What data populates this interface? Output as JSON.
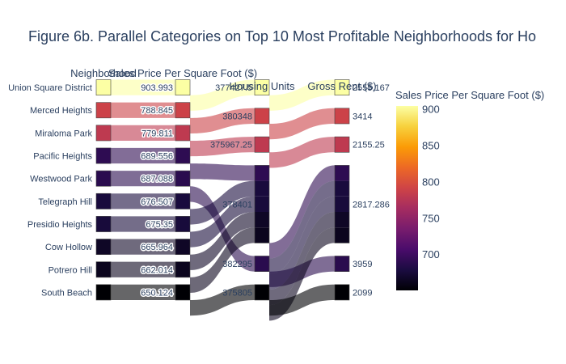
{
  "chart_data": {
    "type": "parallel_categories",
    "title": "Figure 6b. Parallel Categories on Top 10 Most Profitable Neighborhoods for Ho",
    "dimensions": [
      {
        "label": "Neighborhood",
        "categories": [
          "Union Square District",
          "Merced Heights",
          "Miraloma Park",
          "Pacific Heights",
          "Westwood Park",
          "Telegraph Hill",
          "Presidio Heights",
          "Cow Hollow",
          "Potrero Hill",
          "South Beach"
        ]
      },
      {
        "label": "Sales Price Per Square Foot ($)",
        "categories": [
          "903.993",
          "788.845",
          "779.811",
          "689.556",
          "687.088",
          "676.507",
          "675.35",
          "665.964",
          "662.014",
          "650.124"
        ]
      },
      {
        "label": "Housing Units",
        "categories": [
          "377427.5",
          "380348",
          "375967.25",
          "378401",
          "382295",
          "375805"
        ]
      },
      {
        "label": "Gross Rent ($)",
        "categories": [
          "2555.167",
          "3414",
          "2155.25",
          "2817.286",
          "3959",
          "2099"
        ]
      }
    ],
    "records": [
      {
        "neighborhood": "Union Square District",
        "sale_price_sqr_foot": 903.993,
        "housing_units": 377427.5,
        "gross_rent": 2555.167
      },
      {
        "neighborhood": "Merced Heights",
        "sale_price_sqr_foot": 788.845,
        "housing_units": 380348,
        "gross_rent": 3414
      },
      {
        "neighborhood": "Miraloma Park",
        "sale_price_sqr_foot": 779.811,
        "housing_units": 375967.25,
        "gross_rent": 2155.25
      },
      {
        "neighborhood": "Pacific Heights",
        "sale_price_sqr_foot": 689.556,
        "housing_units": 378401,
        "gross_rent": 2817.286
      },
      {
        "neighborhood": "Westwood Park",
        "sale_price_sqr_foot": 687.088,
        "housing_units": 382295,
        "gross_rent": 3959
      },
      {
        "neighborhood": "Telegraph Hill",
        "sale_price_sqr_foot": 676.507,
        "housing_units": 378401,
        "gross_rent": 2817.286
      },
      {
        "neighborhood": "Presidio Heights",
        "sale_price_sqr_foot": 675.35,
        "housing_units": 378401,
        "gross_rent": 2817.286
      },
      {
        "neighborhood": "Cow Hollow",
        "sale_price_sqr_foot": 665.964,
        "housing_units": 378401,
        "gross_rent": 2817.286
      },
      {
        "neighborhood": "Potrero Hill",
        "sale_price_sqr_foot": 662.014,
        "housing_units": 378401,
        "gross_rent": 2817.286
      },
      {
        "neighborhood": "South Beach",
        "sale_price_sqr_foot": 650.124,
        "housing_units": 375805,
        "gross_rent": 2099
      }
    ],
    "colorbar": {
      "title": "Sales Price Per Square Foot ($)",
      "ticks": [
        700,
        750,
        800,
        850,
        900
      ],
      "range": [
        650.124,
        903.993
      ],
      "colorscale": [
        "#000004",
        "#1b0c41",
        "#4a0c6b",
        "#781c6d",
        "#a52c60",
        "#cf4446",
        "#ed6925",
        "#fb9b06",
        "#f7d13d",
        "#fcffa4"
      ]
    }
  }
}
